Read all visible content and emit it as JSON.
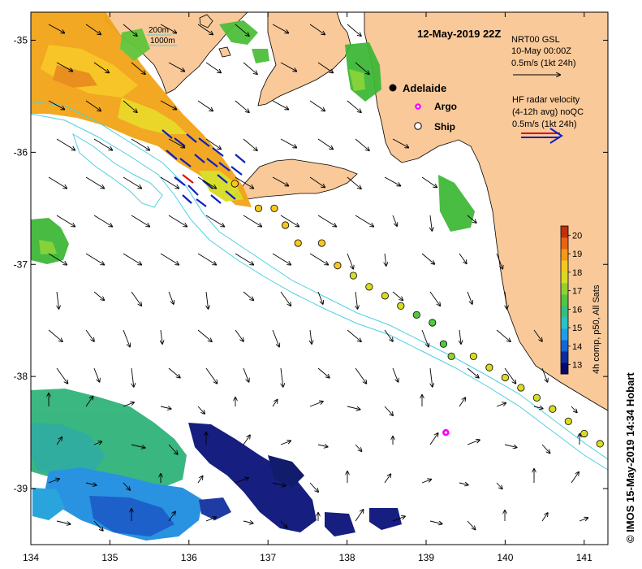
{
  "map": {
    "title": "12-May-2019 22Z",
    "credit": "© IMOS 15-May-2019 14:34 Hobart",
    "x_ticks": [
      "134",
      "135",
      "136",
      "137",
      "138",
      "139",
      "140",
      "141"
    ],
    "y_ticks": [
      "-35",
      "-36",
      "-37",
      "-38",
      "-39"
    ],
    "x_range": [
      134,
      141.3
    ],
    "y_range": [
      -34.75,
      -39.5
    ],
    "land_color": "#f9c999",
    "sea_color": "#ffffff",
    "isobath_color": "#4dd0e1"
  },
  "isobath_legend": {
    "line1": "200m",
    "line2": "1000m"
  },
  "model_legend": {
    "line1": "NRT00 GSL",
    "line2": "10-May 00:00Z",
    "line3": "0.5m/s (1kt 24h)"
  },
  "radar_legend": {
    "line1": "HF radar velocity",
    "line2": "(4-12h avg) noQC",
    "line3": "0.5m/s (1kt 24h)"
  },
  "markers_legend": {
    "adelaide": "Adelaide",
    "argo": "Argo",
    "ship": "Ship"
  },
  "colorbar": {
    "label": "4h comp, p50, All Sats",
    "ticks": [
      "20",
      "19",
      "18",
      "17",
      "16",
      "15",
      "14",
      "13"
    ],
    "range": [
      12.5,
      20.5
    ],
    "colors": [
      "#08086b",
      "#0a2ea0",
      "#1266d8",
      "#1e9ee8",
      "#24c4c8",
      "#30c080",
      "#50c840",
      "#90d030",
      "#d8dc20",
      "#f6c81c",
      "#f49a14",
      "#e86410",
      "#c0300c"
    ]
  },
  "ship_track": [
    {
      "lon": 136.58,
      "lat": -36.28,
      "temp": 18.5
    },
    {
      "lon": 136.88,
      "lat": -36.5,
      "temp": 18.3
    },
    {
      "lon": 137.08,
      "lat": -36.5,
      "temp": 18.3
    },
    {
      "lon": 137.22,
      "lat": -36.65,
      "temp": 18.2
    },
    {
      "lon": 137.38,
      "lat": -36.81,
      "temp": 18.2
    },
    {
      "lon": 137.68,
      "lat": -36.81,
      "temp": 18.1
    },
    {
      "lon": 137.88,
      "lat": -37.01,
      "temp": 18.1
    },
    {
      "lon": 138.08,
      "lat": -37.1,
      "temp": 18.0
    },
    {
      "lon": 138.28,
      "lat": -37.2,
      "temp": 17.9
    },
    {
      "lon": 138.48,
      "lat": -37.28,
      "temp": 17.8
    },
    {
      "lon": 138.68,
      "lat": -37.37,
      "temp": 17.6
    },
    {
      "lon": 138.88,
      "lat": -37.45,
      "temp": 16.7
    },
    {
      "lon": 139.08,
      "lat": -37.52,
      "temp": 16.6
    },
    {
      "lon": 139.22,
      "lat": -37.71,
      "temp": 16.6
    },
    {
      "lon": 139.32,
      "lat": -37.82,
      "temp": 17.4
    },
    {
      "lon": 139.6,
      "lat": -37.82,
      "temp": 17.5
    },
    {
      "lon": 139.8,
      "lat": -37.92,
      "temp": 17.6
    },
    {
      "lon": 140.0,
      "lat": -38.01,
      "temp": 17.7
    },
    {
      "lon": 140.2,
      "lat": -38.1,
      "temp": 17.7
    },
    {
      "lon": 140.4,
      "lat": -38.19,
      "temp": 17.7
    },
    {
      "lon": 140.6,
      "lat": -38.29,
      "temp": 17.6
    },
    {
      "lon": 140.8,
      "lat": -38.4,
      "temp": 17.6
    },
    {
      "lon": 141.0,
      "lat": -38.51,
      "temp": 17.6
    },
    {
      "lon": 141.2,
      "lat": -38.6,
      "temp": 17.5
    }
  ],
  "argo_float": {
    "lon": 139.25,
    "lat": -38.5
  }
}
